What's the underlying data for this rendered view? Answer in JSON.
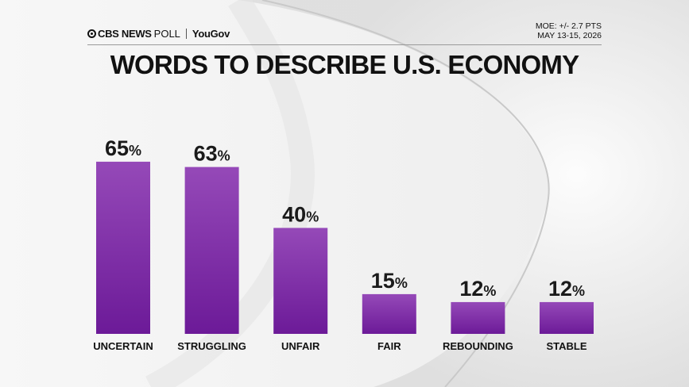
{
  "header": {
    "brand_cbs": "CBS NEWS",
    "brand_poll": "POLL",
    "brand_partner": "YouGov",
    "moe": "MOE: +/- 2.7 PTS",
    "date": "MAY 13-15, 2026"
  },
  "colors": {
    "bar_top": "#9549b8",
    "bar_bottom": "#6c1a98",
    "text": "#111111"
  },
  "chart_data": {
    "type": "bar",
    "title": "WORDS TO DESCRIBE U.S. ECONOMY",
    "categories": [
      "UNCERTAIN",
      "STRUGGLING",
      "UNFAIR",
      "FAIR",
      "REBOUNDING",
      "STABLE"
    ],
    "values": [
      65,
      63,
      40,
      15,
      12,
      12
    ],
    "value_labels": [
      "65%",
      "63%",
      "40%",
      "15%",
      "12%",
      "12%"
    ],
    "unit": "%",
    "ylim": [
      0,
      100
    ],
    "grid": false,
    "legend": "none"
  }
}
